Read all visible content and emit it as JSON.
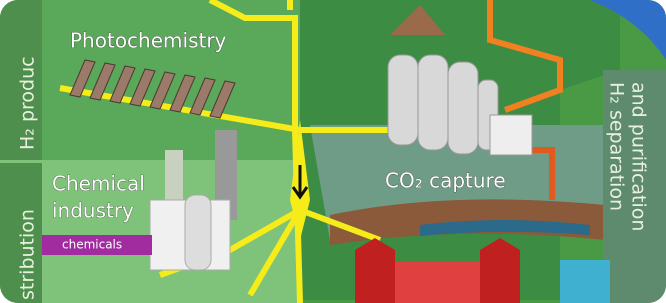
{
  "labels": {
    "photochemistry": "Photochemistry",
    "h2_production": "H₂ produc",
    "chemical_industry": [
      "Chemical",
      "industry"
    ],
    "chemicals": "chemicals",
    "co2_capture": "CO₂ capture",
    "h2_separation": [
      "H₂ separation",
      "and purification"
    ],
    "distribution": "stribution"
  }
}
